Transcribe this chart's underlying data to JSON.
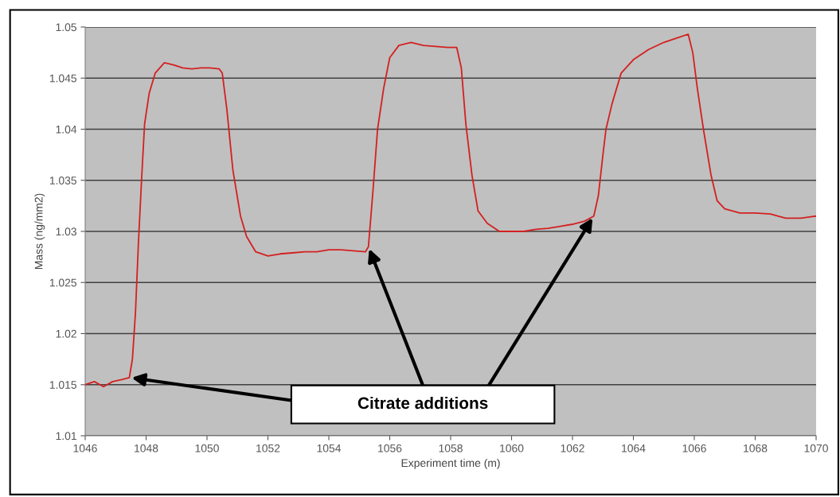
{
  "chart_data": {
    "type": "line",
    "xlabel": "Experiment time (m)",
    "ylabel": "Mass (ng/mm2)",
    "xlim": [
      1046,
      1070
    ],
    "xticks": [
      1046,
      1048,
      1050,
      1052,
      1054,
      1056,
      1058,
      1060,
      1062,
      1064,
      1066,
      1068,
      1070
    ],
    "ylim": [
      1.01,
      1.05
    ],
    "yticks": [
      1.01,
      1.015,
      1.02,
      1.025,
      1.03,
      1.035,
      1.04,
      1.045,
      1.05
    ],
    "grid": "y",
    "legend": false,
    "marker": "none",
    "line_style": "solid",
    "annotations": [
      {
        "text": "Citrate additions",
        "x": 1055.3,
        "y": 1.0285
      }
    ],
    "series": [
      {
        "color": "#d42020",
        "x": [
          1046.0,
          1046.3,
          1046.6,
          1046.9,
          1047.2,
          1047.45,
          1047.55,
          1047.65,
          1047.75,
          1047.85,
          1047.95,
          1048.1,
          1048.3,
          1048.6,
          1048.9,
          1049.2,
          1049.5,
          1049.8,
          1050.1,
          1050.4,
          1050.5,
          1050.65,
          1050.85,
          1051.1,
          1051.3,
          1051.6,
          1052.0,
          1052.4,
          1052.8,
          1053.2,
          1053.6,
          1054.0,
          1054.4,
          1054.8,
          1055.2,
          1055.3,
          1055.45,
          1055.6,
          1055.8,
          1056.0,
          1056.3,
          1056.7,
          1057.1,
          1057.5,
          1057.9,
          1058.2,
          1058.35,
          1058.5,
          1058.7,
          1058.9,
          1059.2,
          1059.6,
          1060.0,
          1060.4,
          1060.8,
          1061.2,
          1061.6,
          1062.0,
          1062.4,
          1062.7,
          1062.85,
          1063.0,
          1063.1,
          1063.3,
          1063.6,
          1064.0,
          1064.5,
          1065.0,
          1065.5,
          1065.8,
          1065.95,
          1066.1,
          1066.3,
          1066.55,
          1066.75,
          1067.0,
          1067.5,
          1068.0,
          1068.5,
          1069.0,
          1069.5,
          1070.0
        ],
        "values": [
          1.015,
          1.0153,
          1.0148,
          1.0153,
          1.0155,
          1.0157,
          1.0175,
          1.022,
          1.029,
          1.035,
          1.0405,
          1.0435,
          1.0455,
          1.0465,
          1.0463,
          1.046,
          1.0459,
          1.046,
          1.046,
          1.0459,
          1.0455,
          1.042,
          1.036,
          1.0315,
          1.0295,
          1.028,
          1.0276,
          1.0278,
          1.0279,
          1.028,
          1.028,
          1.0282,
          1.0282,
          1.0281,
          1.028,
          1.0285,
          1.034,
          1.04,
          1.044,
          1.047,
          1.0482,
          1.0485,
          1.0482,
          1.0481,
          1.048,
          1.048,
          1.046,
          1.0405,
          1.0355,
          1.032,
          1.0308,
          1.03,
          1.03,
          1.03,
          1.0302,
          1.0303,
          1.0305,
          1.0307,
          1.031,
          1.0315,
          1.0335,
          1.0375,
          1.04,
          1.0425,
          1.0455,
          1.0468,
          1.0478,
          1.0485,
          1.049,
          1.0493,
          1.0475,
          1.044,
          1.04,
          1.0355,
          1.033,
          1.0322,
          1.0318,
          1.0318,
          1.0317,
          1.0313,
          1.0313,
          1.0315
        ]
      }
    ]
  }
}
